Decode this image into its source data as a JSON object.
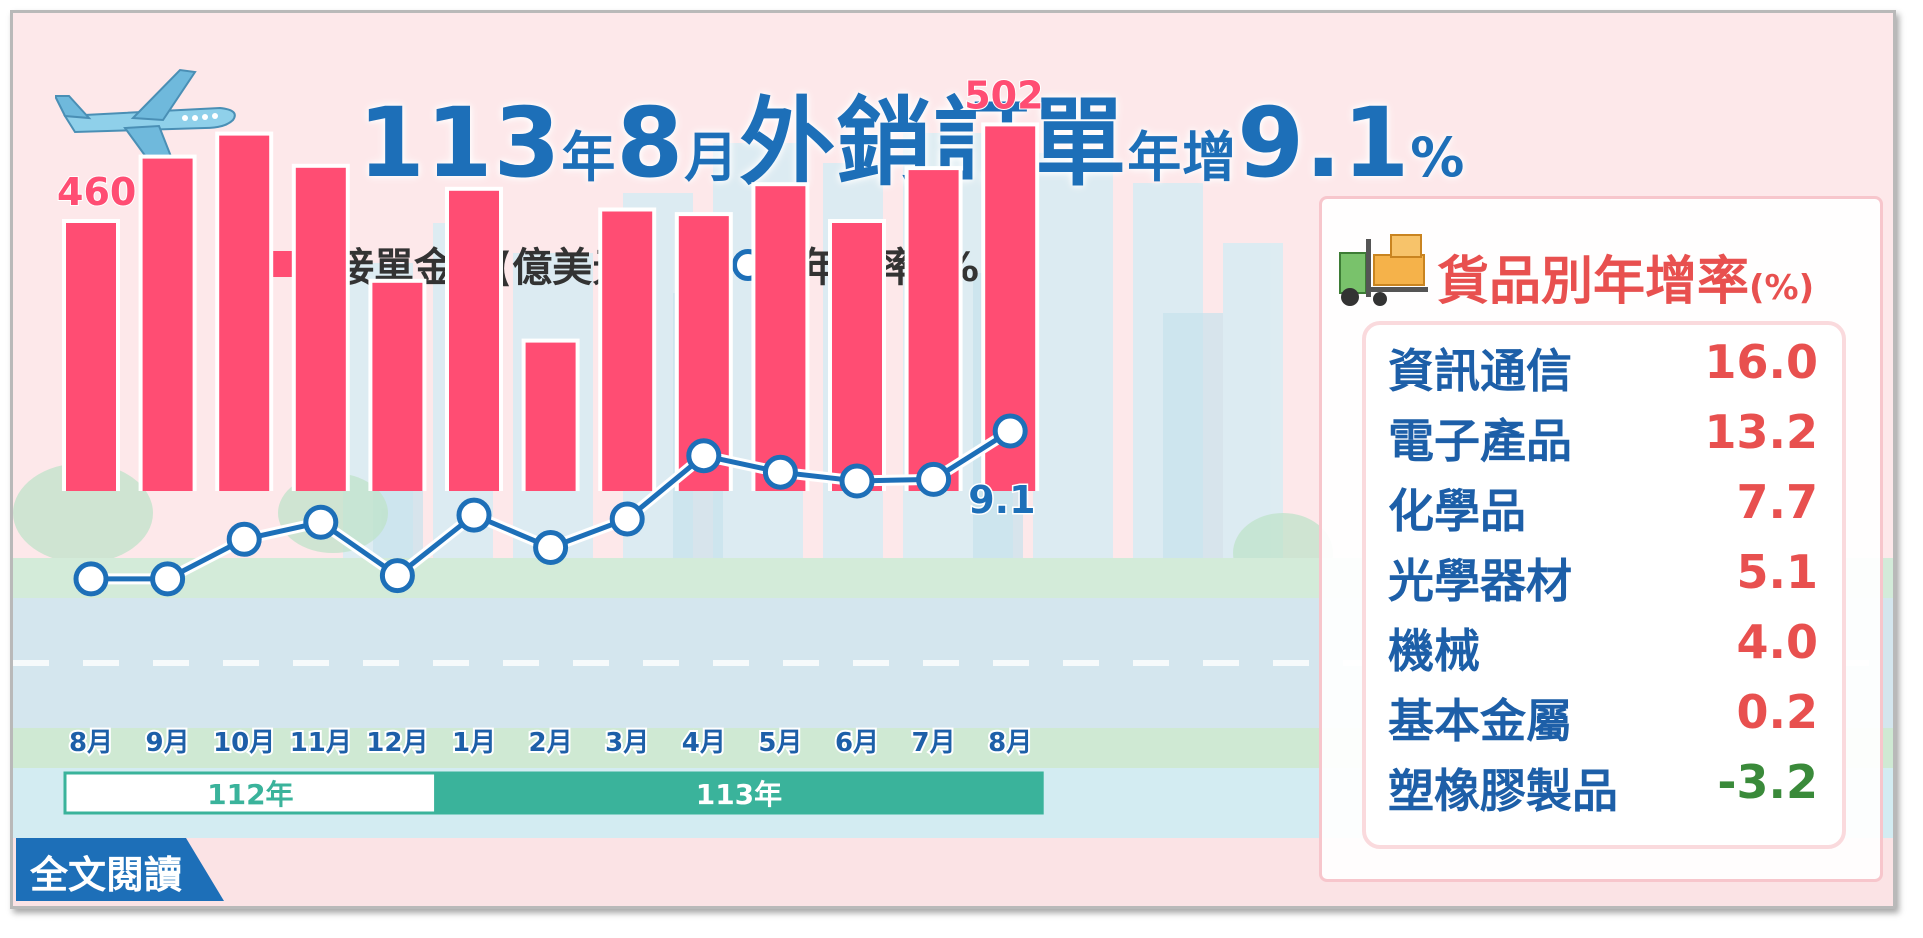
{
  "title": {
    "num1": "113",
    "t1": "年",
    "num2": "8",
    "t2": "月",
    "t3": "外銷訂單",
    "t4": "年增",
    "num3": "9.1",
    "t5": "%"
  },
  "legend": {
    "bar_label": "接單金額(億美元)",
    "line_label": "年增率(%)"
  },
  "chart_data": {
    "type": "bar",
    "categories": [
      "8月",
      "9月",
      "10月",
      "11月",
      "12月",
      "1月",
      "2月",
      "3月",
      "4月",
      "5月",
      "6月",
      "7月",
      "8月"
    ],
    "series": [
      {
        "name": "接單金額(億美元)",
        "values": [
          460,
          488,
          498,
          484,
          434,
          474,
          408,
          465,
          463,
          476,
          460,
          483,
          502
        ]
      },
      {
        "name": "年增率(%)",
        "values": [
          -17.8,
          -17.8,
          -10.6,
          -7.5,
          -17.2,
          -6.2,
          -12.1,
          -6.9,
          4.6,
          1.6,
          0.0,
          0.3,
          9.1
        ]
      }
    ],
    "labels": {
      "first_bar": "460",
      "last_bar": "502",
      "last_line": "9.1"
    },
    "periods": [
      {
        "label": "112年",
        "start": 0,
        "end": 4
      },
      {
        "label": "113年",
        "start": 5,
        "end": 12
      }
    ],
    "colors": {
      "bar": "#ff4d73",
      "line": "#1d6fb8",
      "period_112_fill": "#ffffff",
      "period_113_fill": "#3ab39b"
    }
  },
  "panel": {
    "title": "貨品別年增率",
    "unit": "(%)",
    "items": [
      {
        "name": "資訊通信",
        "value": "16.0",
        "color": "#e8504f"
      },
      {
        "name": "電子產品",
        "value": "13.2",
        "color": "#e8504f"
      },
      {
        "name": "化學品",
        "value": "7.7",
        "color": "#e8504f"
      },
      {
        "name": "光學器材",
        "value": "5.1",
        "color": "#e8504f"
      },
      {
        "name": "機械",
        "value": "4.0",
        "color": "#e8504f"
      },
      {
        "name": "基本金屬",
        "value": "0.2",
        "color": "#e8504f"
      },
      {
        "name": "塑橡膠製品",
        "value": "-3.2",
        "color": "#3a8a3a"
      }
    ]
  },
  "read_button": {
    "label": "全文閱讀"
  },
  "icons": {
    "plane": "airplane-icon",
    "forklift": "forklift-icon"
  }
}
